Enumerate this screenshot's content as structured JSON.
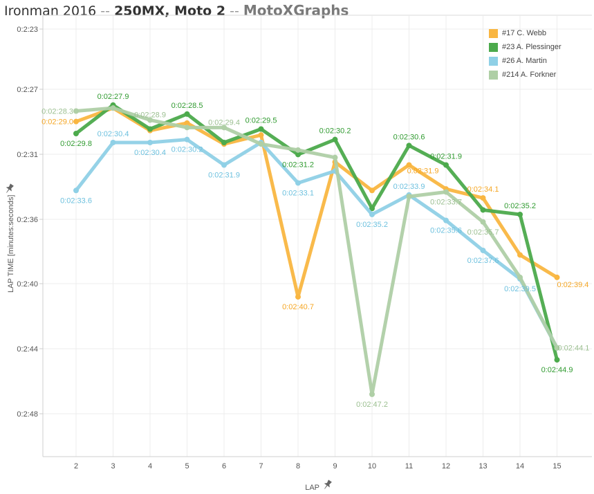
{
  "header": {
    "event": "Ironman 2016",
    "separator": " -- ",
    "class_moto": "250MX, Moto 2",
    "brand": "MotoXGraphs"
  },
  "chart_data": {
    "type": "line",
    "title": "Ironman 2016 -- 250MX, Moto 2 -- MotoXGraphs",
    "xlabel": "LAP",
    "ylabel": "LAP TIME [minutes:seconds]",
    "x": [
      2,
      3,
      4,
      5,
      6,
      7,
      8,
      9,
      10,
      11,
      12,
      13,
      14,
      15
    ],
    "x_ticks": [
      "2",
      "3",
      "4",
      "5",
      "6",
      "7",
      "8",
      "9",
      "10",
      "11",
      "12",
      "13",
      "14",
      "15"
    ],
    "y_ticks": [
      "0:2:23",
      "0:2:27",
      "0:2:31",
      "0:2:36",
      "0:2:40",
      "0:2:44",
      "0:2:48"
    ],
    "y_unit": "seconds",
    "y_inverted": true,
    "grid": true,
    "legend_position": "top-right",
    "series": [
      {
        "name": "#17 C. Webb",
        "color": "#f9b641",
        "values": [
          149.0,
          148.1,
          149.6,
          149.1,
          150.5,
          149.9,
          160.7,
          151.7,
          153.6,
          151.9,
          153.5,
          154.1,
          157.9,
          159.4
        ],
        "labels": {
          "2": "0:02:29.0",
          "8": "0:02:40.7",
          "11": "0:02:31.9",
          "13": "0:02:34.1",
          "15": "0:02:39.4"
        }
      },
      {
        "name": "#23 A. Plessinger",
        "color": "#4caa4c",
        "values": [
          149.8,
          147.9,
          149.5,
          148.5,
          150.4,
          149.5,
          151.2,
          150.2,
          154.8,
          150.6,
          151.9,
          154.9,
          155.2,
          164.9
        ],
        "labels": {
          "2": "0:02:29.8",
          "3": "0:02:27.9",
          "5": "0:02:28.5",
          "7": "0:02:29.5",
          "8": "0:02:31.2",
          "9": "0:02:30.2",
          "11": "0:02:30.6",
          "12": "0:02:31.9",
          "14": "0:02:35.2",
          "15": "0:02:44.9"
        }
      },
      {
        "name": "#26 A. Martin",
        "color": "#8fd0e6",
        "values": [
          153.6,
          150.4,
          150.4,
          150.2,
          151.9,
          150.4,
          153.1,
          152.3,
          155.2,
          153.9,
          155.6,
          157.6,
          159.5,
          164.1
        ],
        "labels": {
          "2": "0:02:33.6",
          "3": "0:02:30.4",
          "4": "0:02:30.4",
          "5": "0:02:30.2",
          "6": "0:02:31.9",
          "8": "0:02:33.1",
          "10": "0:02:35.2",
          "11": "0:02:33.9",
          "12": "0:02:35.6",
          "13": "0:02:37.6",
          "14": "0:02:39.5"
        }
      },
      {
        "name": "#214 A. Forkner",
        "color": "#afcfa6",
        "values": [
          148.3,
          148.1,
          148.9,
          149.4,
          149.4,
          150.5,
          150.9,
          151.4,
          167.2,
          154.0,
          153.7,
          155.7,
          159.4,
          164.1
        ],
        "labels": {
          "2": "0:02:28.3",
          "4": "0:02:28.9",
          "6": "0:02:29.4",
          "10": "0:02:47.2",
          "12": "0:02:33.7",
          "13": "0:02:35.7",
          "15": "0:02:44.1"
        }
      }
    ]
  }
}
